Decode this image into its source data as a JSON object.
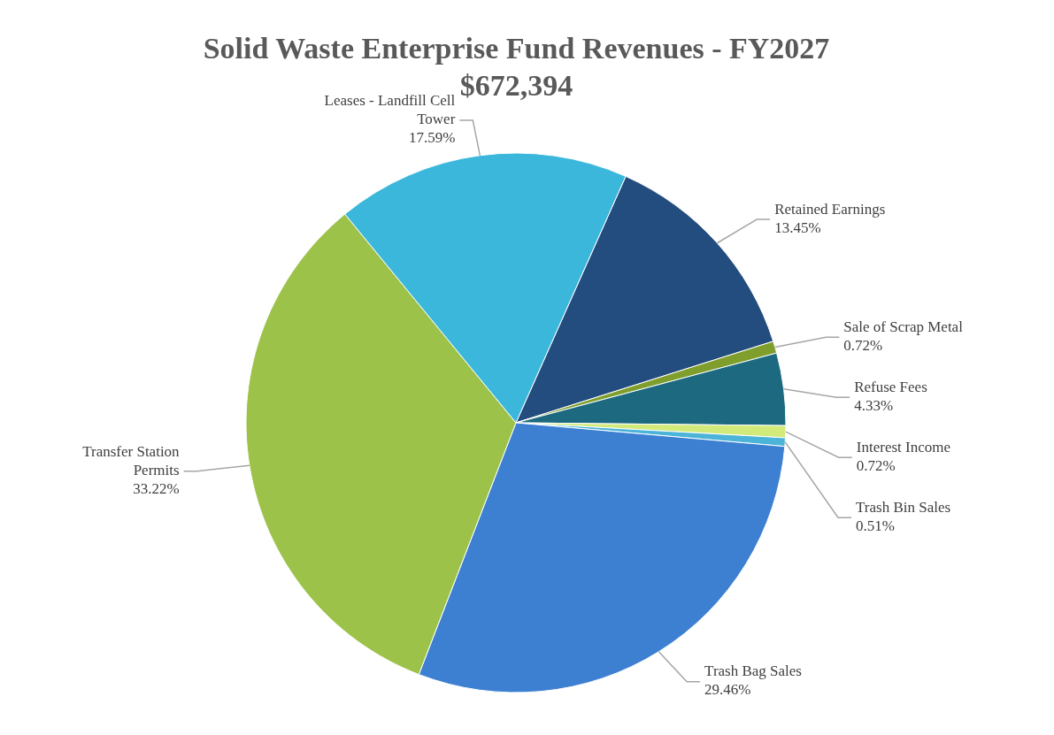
{
  "chart_data": {
    "type": "pie",
    "title": "Solid Waste Enterprise Fund Revenues - FY2027",
    "subtitle": "$672,394",
    "categories": [
      "Retained Earnings",
      "Sale of Scrap Metal",
      "Refuse Fees",
      "Interest Income",
      "Trash Bin Sales",
      "Trash Bag Sales",
      "Transfer Station Permits",
      "Leases - Landfill Cell Tower"
    ],
    "values": [
      13.45,
      0.72,
      4.33,
      0.72,
      0.51,
      29.46,
      33.22,
      17.59
    ],
    "colors": [
      "#234d7e",
      "#7f9e2c",
      "#1d6a80",
      "#d2ea7a",
      "#4cb4d8",
      "#3d80d2",
      "#9cc24a",
      "#3bb7dc"
    ],
    "value_labels": [
      "13.45%",
      "0.72%",
      "4.33%",
      "0.72%",
      "0.51%",
      "29.46%",
      "33.22%",
      "17.59%"
    ]
  }
}
